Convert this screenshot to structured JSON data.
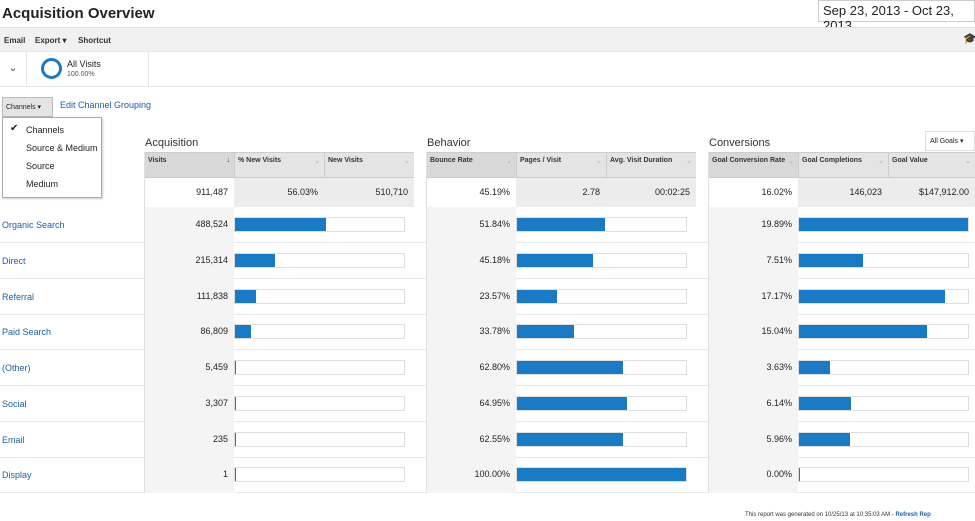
{
  "title": "Acquisition Overview",
  "date_range": "Sep 23, 2013 - Oct 23, 2013",
  "toolbar": {
    "email": "Email",
    "export": "Export ▾",
    "shortcut": "Shortcut"
  },
  "segment": {
    "name": "All Visits",
    "percent": "100.00%"
  },
  "grouping": {
    "button": "Channels ▾",
    "edit_link": "Edit Channel Grouping",
    "menu": [
      "Channels",
      "Source & Medium",
      "Source",
      "Medium"
    ],
    "selected": "Channels"
  },
  "groups": {
    "acquisition": "Acquisition",
    "behavior": "Behavior",
    "conversions": "Conversions"
  },
  "goal_select": "All Goals ▾",
  "columns": [
    "Visits",
    "% New Visits",
    "New Visits",
    "Bounce Rate",
    "Pages / Visit",
    "Avg. Visit Duration",
    "Goal Conversion Rate",
    "Goal Completions",
    "Goal Value"
  ],
  "totals": [
    "911,487",
    "56.03%",
    "510,710",
    "45.19%",
    "2.78",
    "00:02:25",
    "16.02%",
    "146,023",
    "$147,912.00"
  ],
  "rows": [
    {
      "channel": "Organic Search",
      "visits": "488,524",
      "bounce": "51.84%",
      "conv": "19.89%"
    },
    {
      "channel": "Direct",
      "visits": "215,314",
      "bounce": "45.18%",
      "conv": "7.51%"
    },
    {
      "channel": "Referral",
      "visits": "111,838",
      "bounce": "23.57%",
      "conv": "17.17%"
    },
    {
      "channel": "Paid Search",
      "visits": "86,809",
      "bounce": "33.78%",
      "conv": "15.04%"
    },
    {
      "channel": "(Other)",
      "visits": "5,459",
      "bounce": "62.80%",
      "conv": "3.63%"
    },
    {
      "channel": "Social",
      "visits": "3,307",
      "bounce": "64.95%",
      "conv": "6.14%"
    },
    {
      "channel": "Email",
      "visits": "235",
      "bounce": "62.55%",
      "conv": "5.96%"
    },
    {
      "channel": "Display",
      "visits": "1",
      "bounce": "100.00%",
      "conv": "0.00%"
    }
  ],
  "footer": {
    "text": "This report was generated on 10/25/13 at 10:35:03 AM - ",
    "link": "Refresh Rep"
  },
  "colors": {
    "bar": "#1a7ac3",
    "link": "#1f5fa6"
  }
}
